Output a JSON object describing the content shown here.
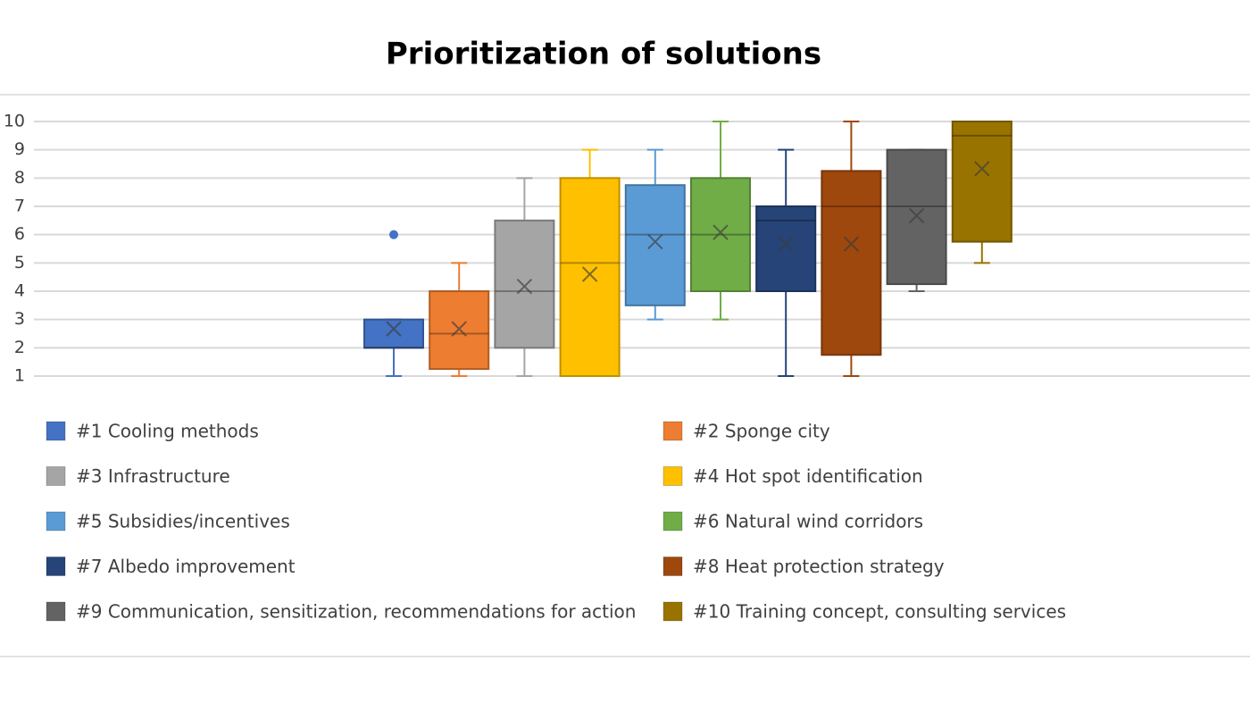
{
  "chart_data": {
    "type": "box",
    "title": "Prioritization of solutions",
    "ylim": [
      1,
      10
    ],
    "yticks": [
      1,
      2,
      3,
      4,
      5,
      6,
      7,
      8,
      9,
      10
    ],
    "grid": true,
    "series": [
      {
        "name": "#1 Cooling methods",
        "color": "#4472c4",
        "min": 1,
        "q1": 2,
        "median": 2,
        "q3": 3,
        "max": 3,
        "mean": 2.67,
        "outliers": [
          6
        ]
      },
      {
        "name": "#2 Sponge city",
        "color": "#ed7d31",
        "min": 1,
        "q1": 1.25,
        "median": 2.5,
        "q3": 4,
        "max": 5,
        "mean": 2.67
      },
      {
        "name": "#3 Infrastructure",
        "color": "#a5a5a5",
        "min": 1,
        "q1": 2,
        "median": 4,
        "q3": 6.5,
        "max": 8,
        "mean": 4.17
      },
      {
        "name": "#4 Hot spot identification",
        "color": "#ffc000",
        "min": 1,
        "q1": 1,
        "median": 5,
        "q3": 8,
        "max": 9,
        "mean": 4.6
      },
      {
        "name": "#5 Subsidies/incentives",
        "color": "#5b9bd5",
        "min": 3,
        "q1": 3.5,
        "median": 6,
        "q3": 7.75,
        "max": 9,
        "mean": 5.75
      },
      {
        "name": "#6 Natural wind corridors",
        "color": "#70ad47",
        "min": 3,
        "q1": 4,
        "median": 6,
        "q3": 8,
        "max": 10,
        "mean": 6.08
      },
      {
        "name": "#7 Albedo improvement",
        "color": "#264478",
        "min": 1,
        "q1": 4,
        "median": 6.5,
        "q3": 7,
        "max": 9,
        "mean": 5.67
      },
      {
        "name": "#8 Heat protection strategy",
        "color": "#9e480e",
        "min": 1,
        "q1": 1.75,
        "median": 7,
        "q3": 8.25,
        "max": 10,
        "mean": 5.67
      },
      {
        "name": "#9 Communication, sensitization, recommendations for action",
        "color": "#636363",
        "min": 4,
        "q1": 4.25,
        "median": 7,
        "q3": 9,
        "max": 9,
        "mean": 6.67
      },
      {
        "name": "#10 Training concept, consulting services",
        "color": "#997300",
        "min": 5,
        "q1": 5.75,
        "median": 9.5,
        "q3": 10,
        "max": 10,
        "mean": 8.33
      }
    ]
  }
}
